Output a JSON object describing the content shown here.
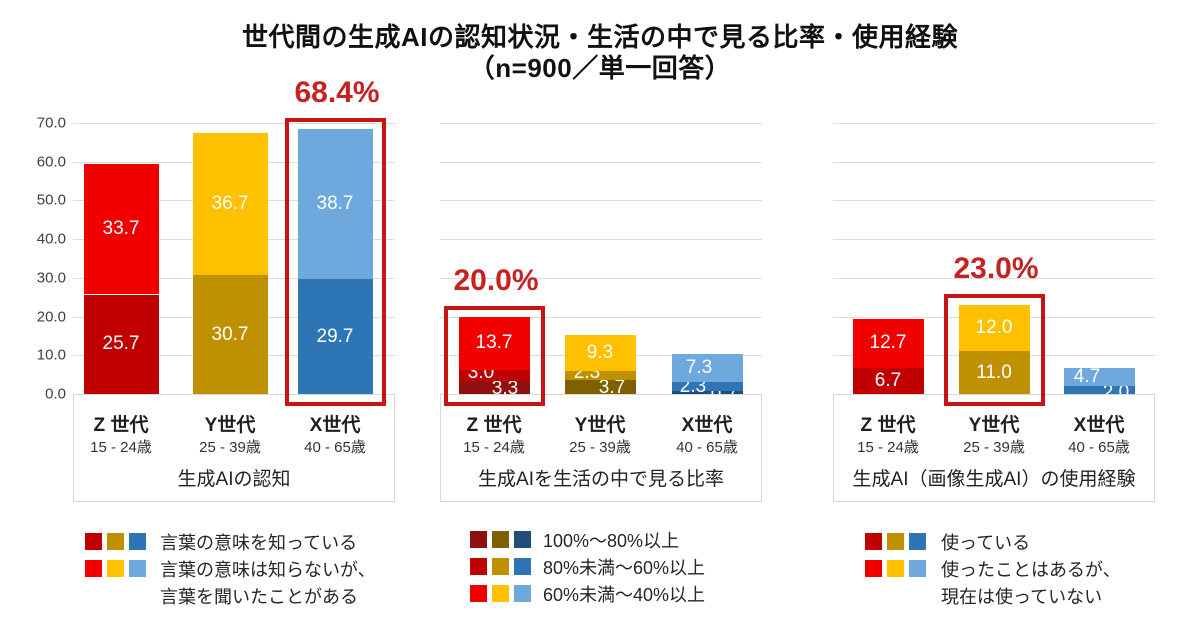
{
  "title": {
    "line1": "世代間の生成AIの認知状況・生活の中で見る比率・使用経験",
    "line2": "（n=900／単一回答）"
  },
  "accent_colors": {
    "highlight_red": "#c91414",
    "percent_label_red": "#c62222",
    "gridline": "#dcdcdc"
  },
  "chart_data": [
    {
      "type": "bar",
      "subtype": "stacked",
      "caption": "生成AIの認知",
      "y_axis": {
        "min": 0,
        "max": 70,
        "ticks": [
          "0.0",
          "10.0",
          "20.0",
          "30.0",
          "40.0",
          "50.0",
          "60.0",
          "70.0"
        ],
        "visible": true
      },
      "grid": true,
      "categories": [
        {
          "label": "Z 世代",
          "age": "15 - 24歳"
        },
        {
          "label": "Y世代",
          "age": "25 - 39歳"
        },
        {
          "label": "X世代",
          "age": "40 - 65歳"
        }
      ],
      "series": [
        {
          "name": "言葉の意味を知っている",
          "values": [
            25.7,
            30.7,
            29.7
          ],
          "labels": [
            "25.7",
            "30.7",
            "29.7"
          ],
          "colors": [
            "#c00000",
            "#bf9000",
            "#2e75b6"
          ]
        },
        {
          "name": "言葉の意味は知らないが、言葉を聞いたことがある",
          "values": [
            33.7,
            36.7,
            38.7
          ],
          "labels": [
            "33.7",
            "36.7",
            "38.7"
          ],
          "colors": [
            "#f20000",
            "#ffc000",
            "#6fa8dc"
          ]
        }
      ],
      "totals": [
        59.4,
        67.4,
        68.4
      ],
      "highlight": {
        "category_index": 2,
        "label": "68.4%"
      },
      "legend": {
        "position": "bottom-left",
        "rows": [
          {
            "swatches": [
              "#c00000",
              "#bf9000",
              "#2e75b6"
            ],
            "lines": [
              "言葉の意味を知っている"
            ]
          },
          {
            "swatches": [
              "#f20000",
              "#ffc000",
              "#6fa8dc"
            ],
            "lines": [
              "言葉の意味は知らないが、",
              "言葉を聞いたことがある"
            ]
          }
        ]
      },
      "label_offsets": {}
    },
    {
      "type": "bar",
      "subtype": "stacked",
      "caption": "生成AIを生活の中で見る比率",
      "y_axis": {
        "min": 0,
        "max": 70,
        "visible": false
      },
      "grid": true,
      "categories": [
        {
          "label": "Z 世代",
          "age": "15 - 24歳"
        },
        {
          "label": "Y世代",
          "age": "25 - 39歳"
        },
        {
          "label": "X世代",
          "age": "40 - 65歳"
        }
      ],
      "series": [
        {
          "name": "100%〜80%以上",
          "values": [
            3.3,
            3.7,
            0.7
          ],
          "labels": [
            "3.3",
            "3.7",
            "0.7"
          ],
          "colors": [
            "#901010",
            "#7f6000",
            "#1f4e79"
          ]
        },
        {
          "name": "80%未満〜60%以上",
          "values": [
            3.0,
            2.3,
            2.3
          ],
          "labels": [
            "3.0",
            "2.3",
            "2.3"
          ],
          "colors": [
            "#c00000",
            "#bf9000",
            "#2e75b6"
          ]
        },
        {
          "name": "60%未満〜40%以上",
          "values": [
            13.7,
            9.3,
            7.3
          ],
          "labels": [
            "13.7",
            "9.3",
            "7.3"
          ],
          "colors": [
            "#f20000",
            "#ffc000",
            "#6fa8dc"
          ]
        }
      ],
      "totals": [
        20.0,
        15.3,
        10.3
      ],
      "highlight": {
        "category_index": 0,
        "label": "20.0%"
      },
      "legend": {
        "position": "bottom-left",
        "rows": [
          {
            "swatches": [
              "#901010",
              "#7f6000",
              "#1f4e79"
            ],
            "lines": [
              "100%〜80%以上"
            ]
          },
          {
            "swatches": [
              "#c00000",
              "#bf9000",
              "#2e75b6"
            ],
            "lines": [
              "80%未満〜60%以上"
            ]
          },
          {
            "swatches": [
              "#f20000",
              "#ffc000",
              "#6fa8dc"
            ],
            "lines": [
              "60%未満〜40%以上"
            ]
          }
        ]
      },
      "label_offsets": {
        "0-1": [
          -13,
          -2
        ],
        "0-0": [
          11,
          1
        ],
        "1-1": [
          -13,
          -2
        ],
        "1-0": [
          12,
          1
        ],
        "2-2": [
          -8,
          0
        ],
        "2-1": [
          -14,
          0
        ],
        "2-0": [
          17,
          2
        ]
      }
    },
    {
      "type": "bar",
      "subtype": "stacked",
      "caption": "生成AI（画像生成AI）の使用経験",
      "y_axis": {
        "min": 0,
        "max": 70,
        "visible": false
      },
      "grid": true,
      "categories": [
        {
          "label": "Z 世代",
          "age": "15 - 24歳"
        },
        {
          "label": "Y世代",
          "age": "25 - 39歳"
        },
        {
          "label": "X世代",
          "age": "40 - 65歳"
        }
      ],
      "series": [
        {
          "name": "使っている",
          "values": [
            6.7,
            11.0,
            2.0
          ],
          "labels": [
            "6.7",
            "11.0",
            "2.0"
          ],
          "colors": [
            "#c00000",
            "#bf9000",
            "#2e75b6"
          ]
        },
        {
          "name": "使ったことはあるが、現在は使っていない",
          "values": [
            12.7,
            12.0,
            4.7
          ],
          "labels": [
            "12.7",
            "12.0",
            "4.7"
          ],
          "colors": [
            "#f20000",
            "#ffc000",
            "#6fa8dc"
          ]
        }
      ],
      "totals": [
        19.4,
        23.0,
        6.7
      ],
      "highlight": {
        "category_index": 1,
        "label": "23.0%"
      },
      "legend": {
        "position": "bottom-left",
        "rows": [
          {
            "swatches": [
              "#c00000",
              "#bf9000",
              "#2e75b6"
            ],
            "lines": [
              "使っている"
            ]
          },
          {
            "swatches": [
              "#f20000",
              "#ffc000",
              "#6fa8dc"
            ],
            "lines": [
              "使ったことはあるが、",
              "現在は使っていない"
            ]
          }
        ]
      },
      "label_offsets": {
        "2-1": [
          -12,
          0
        ],
        "2-0": [
          17,
          3
        ]
      }
    }
  ]
}
